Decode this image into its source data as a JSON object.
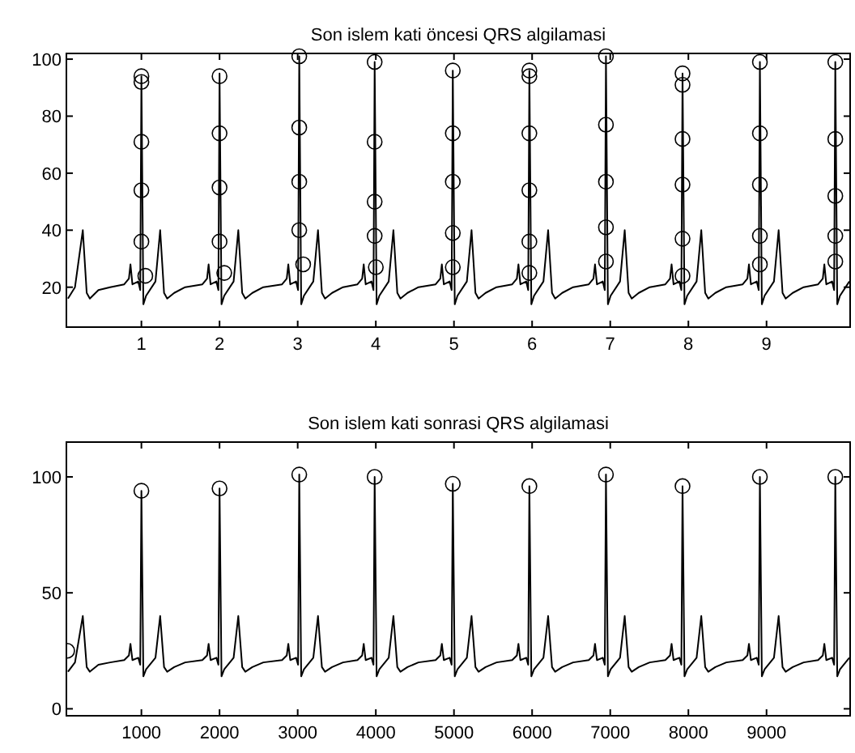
{
  "chart_data": [
    {
      "type": "line",
      "title": "Son islem kati öncesi QRS algilamasi",
      "xlim": [
        0.04,
        10.07
      ],
      "ylim": [
        6,
        102
      ],
      "xticks": [
        1,
        2,
        3,
        4,
        5,
        6,
        7,
        8,
        9
      ],
      "yticks": [
        20,
        40,
        60,
        80,
        100
      ],
      "grid": false,
      "series": [
        {
          "color": "#000000",
          "marker": "none",
          "x": [
            0.06,
            0.15,
            0.2,
            0.25,
            0.3,
            0.34,
            0.45,
            0.6,
            0.78,
            0.84,
            0.86,
            0.885,
            0.96,
            0.985,
            1.0,
            1.025,
            1.06,
            1.18,
            1.24,
            1.29,
            1.33,
            1.42,
            1.56,
            1.78,
            1.84,
            1.86,
            1.885,
            1.96,
            1.985,
            2.0,
            2.025,
            2.06,
            2.18,
            2.24,
            2.29,
            2.33,
            2.42,
            2.56,
            2.8,
            2.86,
            2.88,
            2.905,
            2.98,
            3.005,
            3.02,
            3.045,
            3.08,
            3.2,
            3.26,
            3.31,
            3.35,
            3.44,
            3.58,
            3.765,
            3.825,
            3.845,
            3.87,
            3.945,
            3.97,
            3.985,
            4.01,
            4.045,
            4.165,
            4.225,
            4.275,
            4.315,
            4.405,
            4.545,
            4.765,
            4.825,
            4.845,
            4.87,
            4.945,
            4.97,
            4.985,
            5.01,
            5.045,
            5.165,
            5.225,
            5.275,
            5.315,
            5.405,
            5.545,
            5.745,
            5.805,
            5.825,
            5.85,
            5.925,
            5.95,
            5.965,
            5.99,
            6.025,
            6.145,
            6.205,
            6.255,
            6.295,
            6.385,
            6.525,
            6.725,
            6.785,
            6.805,
            6.83,
            6.905,
            6.93,
            6.945,
            6.97,
            7.005,
            7.125,
            7.185,
            7.235,
            7.275,
            7.365,
            7.505,
            7.705,
            7.765,
            7.785,
            7.81,
            7.885,
            7.91,
            7.925,
            7.95,
            7.985,
            8.105,
            8.165,
            8.215,
            8.255,
            8.345,
            8.485,
            8.695,
            8.755,
            8.775,
            8.8,
            8.875,
            8.9,
            8.915,
            8.94,
            8.975,
            9.095,
            9.155,
            9.205,
            9.245,
            9.335,
            9.475,
            9.66,
            9.72,
            9.74,
            9.765,
            9.84,
            9.865,
            9.88,
            9.905,
            9.94,
            10.06
          ],
          "values": [
            16,
            20,
            30,
            40,
            18,
            16,
            19,
            20,
            21,
            23,
            28,
            21,
            22,
            19,
            94,
            14,
            17,
            22,
            40,
            18,
            16,
            18,
            20,
            21,
            23,
            28,
            21,
            22,
            19,
            95,
            14,
            17,
            22,
            40,
            18,
            16,
            18,
            20,
            21,
            23,
            28,
            21,
            22,
            19,
            101,
            14,
            17,
            22,
            40,
            18,
            16,
            18,
            20,
            21,
            23,
            28,
            21,
            22,
            19,
            99,
            14,
            17,
            22,
            40,
            18,
            16,
            18,
            20,
            21,
            23,
            28,
            21,
            22,
            19,
            96,
            14,
            17,
            22,
            40,
            18,
            16,
            18,
            20,
            21,
            23,
            28,
            21,
            22,
            19,
            96,
            14,
            17,
            22,
            40,
            18,
            16,
            18,
            20,
            21,
            23,
            28,
            21,
            22,
            19,
            101,
            14,
            17,
            22,
            40,
            18,
            16,
            18,
            20,
            21,
            23,
            28,
            21,
            22,
            19,
            95,
            14,
            17,
            22,
            40,
            18,
            16,
            18,
            20,
            21,
            23,
            28,
            21,
            22,
            19,
            99,
            14,
            17,
            22,
            40,
            18,
            16,
            18,
            20,
            21,
            23,
            28,
            21,
            22,
            19,
            99,
            14,
            17,
            22
          ]
        },
        {
          "type": "scatter",
          "color": "#000000",
          "marker": "circle",
          "x": [
            1.0,
            1.0,
            1.0,
            1.0,
            1.0,
            1.05,
            2.0,
            2.0,
            2.0,
            2.0,
            2.06,
            3.02,
            3.02,
            3.02,
            3.02,
            3.07,
            3.985,
            3.985,
            3.985,
            3.985,
            4.0,
            4.985,
            4.985,
            4.985,
            4.985,
            4.985,
            5.965,
            5.965,
            5.965,
            5.965,
            5.965,
            5.965,
            6.945,
            6.945,
            6.945,
            6.945,
            6.945,
            7.925,
            7.925,
            7.925,
            7.925,
            7.925,
            7.925,
            8.915,
            8.915,
            8.915,
            8.915,
            8.915,
            9.88,
            9.88,
            9.88,
            9.88,
            9.88
          ],
          "values": [
            94,
            92,
            71,
            54,
            36,
            24,
            94,
            74,
            55,
            36,
            25,
            101,
            76,
            57,
            40,
            28,
            99,
            71,
            50,
            38,
            27,
            96,
            74,
            57,
            39,
            27,
            96,
            94,
            74,
            54,
            36,
            25,
            101,
            77,
            57,
            41,
            29,
            95,
            91,
            72,
            56,
            37,
            24,
            99,
            74,
            56,
            38,
            28,
            99,
            72,
            52,
            38,
            29
          ]
        }
      ]
    },
    {
      "type": "line",
      "title": "Son islem kati sonrasi QRS algilamasi",
      "xlim": [
        40,
        10070
      ],
      "ylim": [
        -3,
        115
      ],
      "xticks": [
        1000,
        2000,
        3000,
        4000,
        5000,
        6000,
        7000,
        8000,
        9000
      ],
      "yticks": [
        0,
        50,
        100
      ],
      "grid": false,
      "series": [
        {
          "color": "#000000",
          "marker": "none",
          "x": [
            60,
            150,
            200,
            250,
            300,
            340,
            450,
            600,
            780,
            840,
            860,
            885,
            960,
            985,
            1000,
            1025,
            1060,
            1180,
            1240,
            1290,
            1330,
            1420,
            1560,
            1780,
            1840,
            1860,
            1885,
            1960,
            1985,
            2000,
            2025,
            2060,
            2180,
            2240,
            2290,
            2330,
            2420,
            2560,
            2800,
            2860,
            2880,
            2905,
            2980,
            3005,
            3020,
            3045,
            3080,
            3200,
            3260,
            3310,
            3350,
            3440,
            3580,
            3765,
            3825,
            3845,
            3870,
            3945,
            3970,
            3985,
            4010,
            4045,
            4165,
            4225,
            4275,
            4315,
            4405,
            4545,
            4765,
            4825,
            4845,
            4870,
            4945,
            4970,
            4985,
            5010,
            5045,
            5165,
            5225,
            5275,
            5315,
            5405,
            5545,
            5745,
            5805,
            5825,
            5850,
            5925,
            5950,
            5965,
            5990,
            6025,
            6145,
            6205,
            6255,
            6295,
            6385,
            6525,
            6725,
            6785,
            6805,
            6830,
            6905,
            6930,
            6945,
            6970,
            7005,
            7125,
            7185,
            7235,
            7275,
            7365,
            7505,
            7705,
            7765,
            7785,
            7810,
            7885,
            7910,
            7925,
            7950,
            7985,
            8105,
            8165,
            8215,
            8255,
            8345,
            8485,
            8695,
            8755,
            8775,
            8800,
            8875,
            8900,
            8915,
            8940,
            8975,
            9095,
            9155,
            9205,
            9245,
            9335,
            9475,
            9660,
            9720,
            9740,
            9765,
            9840,
            9865,
            9880,
            9905,
            9940,
            10060
          ],
          "values": [
            16,
            20,
            30,
            40,
            18,
            16,
            19,
            20,
            21,
            23,
            28,
            21,
            22,
            19,
            94,
            14,
            17,
            22,
            40,
            18,
            16,
            18,
            20,
            21,
            23,
            28,
            21,
            22,
            19,
            95,
            14,
            17,
            22,
            40,
            18,
            16,
            18,
            20,
            21,
            23,
            28,
            21,
            22,
            19,
            101,
            14,
            17,
            22,
            40,
            18,
            16,
            18,
            20,
            21,
            23,
            28,
            21,
            22,
            19,
            100,
            14,
            17,
            22,
            40,
            18,
            16,
            18,
            20,
            21,
            23,
            28,
            21,
            22,
            19,
            97,
            14,
            17,
            22,
            40,
            18,
            16,
            18,
            20,
            21,
            23,
            28,
            21,
            22,
            19,
            96,
            14,
            17,
            22,
            40,
            18,
            16,
            18,
            20,
            21,
            23,
            28,
            21,
            22,
            19,
            101,
            14,
            17,
            22,
            40,
            18,
            16,
            18,
            20,
            21,
            23,
            28,
            21,
            22,
            19,
            96,
            14,
            17,
            22,
            40,
            18,
            16,
            18,
            20,
            21,
            23,
            28,
            21,
            22,
            19,
            100,
            14,
            17,
            22,
            40,
            18,
            16,
            18,
            20,
            21,
            23,
            28,
            21,
            22,
            19,
            100,
            14,
            17,
            22
          ]
        },
        {
          "type": "scatter",
          "color": "#000000",
          "marker": "circle",
          "x": [
            50,
            1000,
            2000,
            3020,
            3985,
            4985,
            5965,
            6945,
            7925,
            8915,
            9880
          ],
          "values": [
            25,
            94,
            95,
            101,
            100,
            97,
            96,
            101,
            96,
            100,
            100
          ]
        }
      ]
    }
  ]
}
